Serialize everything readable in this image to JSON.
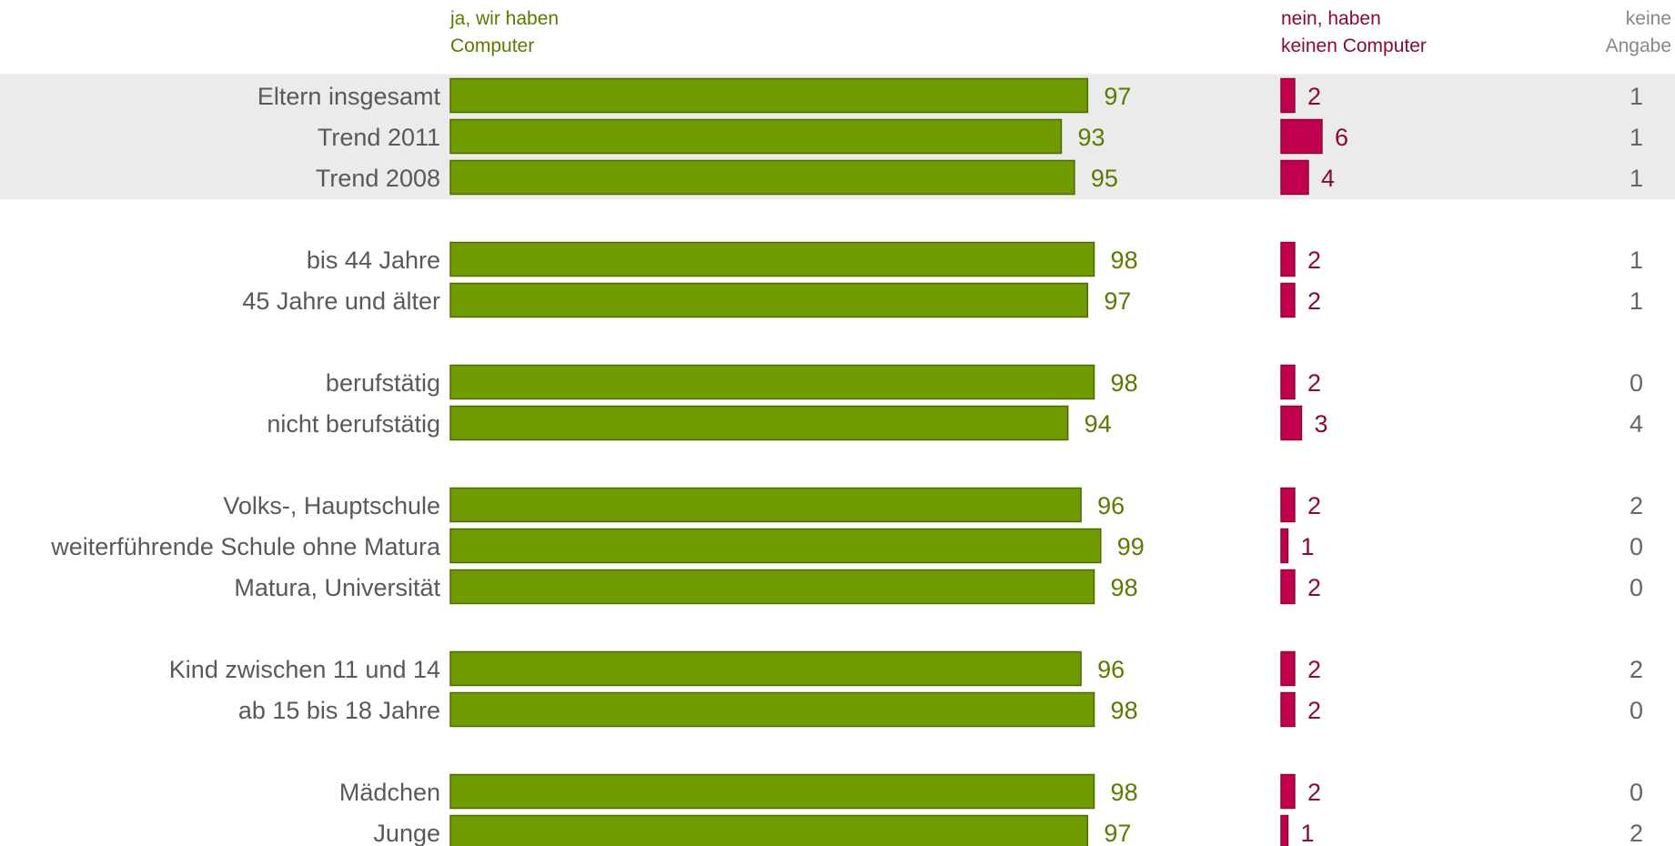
{
  "columns": {
    "yes": {
      "line1": "ja, wir haben",
      "line2": "Computer",
      "color": "#6f9a00"
    },
    "no": {
      "line1": "nein, haben",
      "line2": "keinen Computer",
      "color": "#c1004f"
    },
    "na": {
      "line1": "keine",
      "line2": "Angabe"
    }
  },
  "chart_data": {
    "type": "bar",
    "orientation": "horizontal",
    "highlighted_rows": [
      0,
      1,
      2
    ],
    "groups": [
      [
        {
          "label": "Eltern insgesamt",
          "yes": 97,
          "no": 2,
          "na": 1
        },
        {
          "label": "Trend 2011",
          "yes": 93,
          "no": 6,
          "na": 1
        },
        {
          "label": "Trend 2008",
          "yes": 95,
          "no": 4,
          "na": 1
        }
      ],
      [
        {
          "label": "bis 44 Jahre",
          "yes": 98,
          "no": 2,
          "na": 1
        },
        {
          "label": "45 Jahre und älter",
          "yes": 97,
          "no": 2,
          "na": 1
        }
      ],
      [
        {
          "label": "berufstätig",
          "yes": 98,
          "no": 2,
          "na": 0
        },
        {
          "label": "nicht berufstätig",
          "yes": 94,
          "no": 3,
          "na": 4
        }
      ],
      [
        {
          "label": "Volks-, Hauptschule",
          "yes": 96,
          "no": 2,
          "na": 2
        },
        {
          "label": "weiterführende Schule ohne Matura",
          "yes": 99,
          "no": 1,
          "na": 0
        },
        {
          "label": "Matura, Universität",
          "yes": 98,
          "no": 2,
          "na": 0
        }
      ],
      [
        {
          "label": "Kind zwischen 11 und 14",
          "yes": 96,
          "no": 2,
          "na": 2
        },
        {
          "label": "ab 15 bis 18 Jahre",
          "yes": 98,
          "no": 2,
          "na": 0
        }
      ],
      [
        {
          "label": "Mädchen",
          "yes": 98,
          "no": 2,
          "na": 0
        },
        {
          "label": "Junge",
          "yes": 97,
          "no": 1,
          "na": 2
        }
      ]
    ]
  }
}
